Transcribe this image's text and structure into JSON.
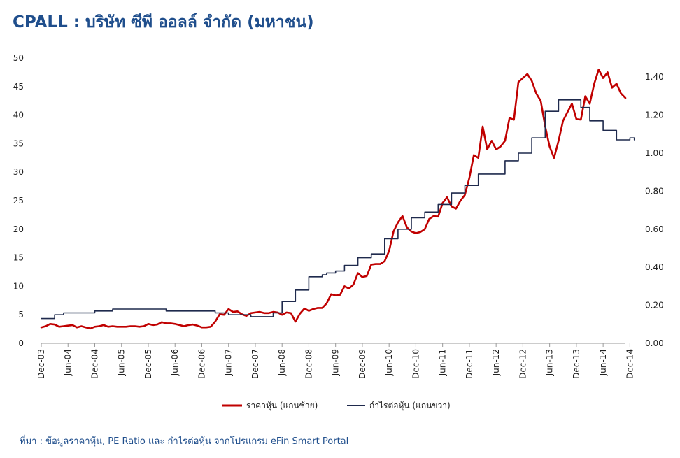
{
  "title": "CPALL : บริษัท ซีพี ออลล์ จำกัด (มหาชน)",
  "source": "ที่มา : ข้อมูลราคาหุ้น, PE Ratio และ กำไรต่อหุ้น จากโปรแกรม eFin Smart Portal",
  "chart_data": {
    "type": "line",
    "title": "CPALL : บริษัท ซีพี ออลล์ จำกัด (มหาชน)",
    "x_tick_labels": [
      "Dec-03",
      "Jun-04",
      "Dec-04",
      "Jun-05",
      "Dec-05",
      "Jun-06",
      "Dec-06",
      "Jun-07",
      "Dec-07",
      "Jun-08",
      "Dec-08",
      "Jun-09",
      "Dec-09",
      "Jun-10",
      "Dec-10",
      "Jun-11",
      "Dec-11",
      "Jun-12",
      "Dec-12",
      "Jun-13",
      "Dec-13",
      "Jun-14",
      "Dec-14"
    ],
    "y_left": {
      "ylim": [
        0,
        50
      ],
      "ticks": [
        0,
        5,
        10,
        15,
        20,
        25,
        30,
        35,
        40,
        45,
        50
      ],
      "tick_labels": [
        "0",
        "5",
        "10",
        "15",
        "20",
        "25",
        "30",
        "35",
        "40",
        "45",
        "50"
      ]
    },
    "y_right": {
      "ylim": [
        0,
        1.5
      ],
      "ticks": [
        0,
        0.2,
        0.4,
        0.6,
        0.8,
        1.0,
        1.2,
        1.4
      ],
      "tick_labels": [
        "0.00",
        "0.20",
        "0.40",
        "0.60",
        "0.80",
        "1.00",
        "1.20",
        "1.40"
      ]
    },
    "legend_position": "bottom",
    "grid": false,
    "series": [
      {
        "name": "ราคาหุ้น (แกนซ้าย)",
        "axis": "left",
        "color": "#c00000",
        "step": false,
        "values": [
          2.8,
          3.0,
          3.4,
          3.3,
          2.9,
          3.0,
          3.1,
          3.2,
          2.8,
          3.0,
          2.8,
          2.6,
          2.9,
          3.0,
          3.2,
          2.9,
          3.0,
          2.9,
          2.9,
          2.9,
          3.0,
          3.0,
          2.9,
          3.0,
          3.4,
          3.2,
          3.3,
          3.7,
          3.5,
          3.5,
          3.4,
          3.2,
          3.0,
          3.2,
          3.3,
          3.1,
          2.8,
          2.8,
          2.9,
          3.8,
          5.1,
          5.0,
          6.0,
          5.5,
          5.6,
          5.1,
          4.8,
          5.3,
          5.4,
          5.5,
          5.3,
          5.3,
          5.5,
          5.4,
          5.0,
          5.4,
          5.3,
          3.8,
          5.2,
          6.1,
          5.7,
          6.0,
          6.2,
          6.2,
          7.0,
          8.6,
          8.4,
          8.5,
          10.0,
          9.6,
          10.3,
          12.3,
          11.6,
          11.8,
          13.8,
          13.9,
          13.9,
          14.4,
          16.2,
          19.6,
          21.2,
          22.3,
          20.3,
          19.6,
          19.3,
          19.5,
          20.0,
          21.8,
          22.3,
          22.2,
          24.6,
          25.6,
          24.0,
          23.6,
          25.0,
          26.0,
          29.0,
          33.0,
          32.5,
          38.0,
          34.0,
          35.5,
          34.0,
          34.5,
          35.5,
          39.5,
          39.2,
          45.8,
          46.5,
          47.2,
          46.0,
          43.8,
          42.5,
          38.0,
          34.5,
          32.5,
          35.5,
          39.0,
          40.5,
          42.0,
          39.3,
          39.2,
          43.3,
          42.0,
          45.5,
          48.0,
          46.5,
          47.5,
          44.8,
          45.5,
          43.8,
          43.0
        ]
      },
      {
        "name": "กำไรต่อหุ้น (แกนขวา)",
        "axis": "right",
        "color": "#1f2a4d",
        "step": true,
        "values": [
          0.13,
          0.13,
          0.13,
          0.15,
          0.15,
          0.16,
          0.16,
          0.16,
          0.16,
          0.16,
          0.16,
          0.16,
          0.17,
          0.17,
          0.17,
          0.17,
          0.18,
          0.18,
          0.18,
          0.18,
          0.18,
          0.18,
          0.18,
          0.18,
          0.18,
          0.18,
          0.18,
          0.18,
          0.17,
          0.17,
          0.17,
          0.17,
          0.17,
          0.17,
          0.17,
          0.17,
          0.17,
          0.17,
          0.17,
          0.16,
          0.16,
          0.16,
          0.15,
          0.15,
          0.15,
          0.15,
          0.15,
          0.14,
          0.14,
          0.14,
          0.14,
          0.14,
          0.16,
          0.16,
          0.22,
          0.22,
          0.22,
          0.28,
          0.28,
          0.28,
          0.35,
          0.35,
          0.35,
          0.36,
          0.37,
          0.37,
          0.38,
          0.38,
          0.41,
          0.41,
          0.41,
          0.45,
          0.45,
          0.45,
          0.47,
          0.47,
          0.47,
          0.55,
          0.55,
          0.55,
          0.6,
          0.6,
          0.6,
          0.66,
          0.66,
          0.66,
          0.69,
          0.69,
          0.69,
          0.73,
          0.73,
          0.73,
          0.79,
          0.79,
          0.79,
          0.83,
          0.83,
          0.83,
          0.89,
          0.89,
          0.89,
          0.89,
          0.89,
          0.89,
          0.96,
          0.96,
          0.96,
          1.0,
          1.0,
          1.0,
          1.08,
          1.08,
          1.08,
          1.22,
          1.22,
          1.22,
          1.28,
          1.28,
          1.28,
          1.28,
          1.28,
          1.24,
          1.24,
          1.17,
          1.17,
          1.17,
          1.12,
          1.12,
          1.12,
          1.07,
          1.07,
          1.07,
          1.08,
          1.07
        ]
      }
    ]
  }
}
